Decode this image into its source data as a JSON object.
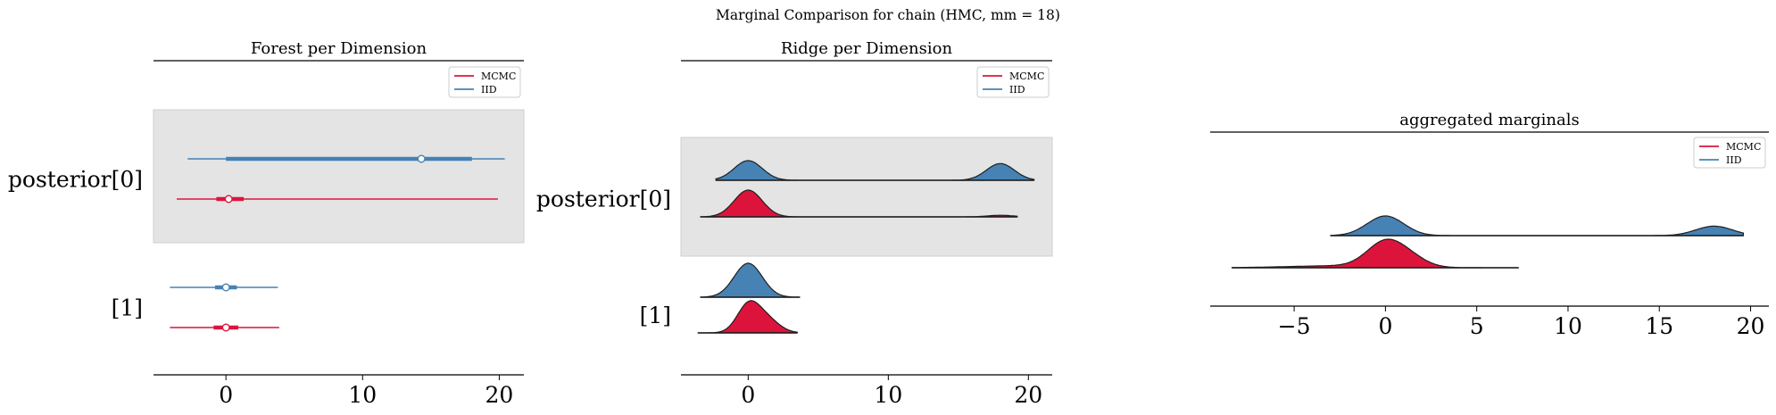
{
  "suptitle": "Marginal Comparison for chain (HMC, mm = 18)",
  "colors": {
    "mcmc": "#dc143c",
    "iid": "#4682b4",
    "band": "#e4e4e4",
    "band_edge": "#cfcfcf",
    "outline": "#1f1f1f"
  },
  "legend": [
    "MCMC",
    "IID"
  ],
  "chart_data": [
    {
      "type": "forest",
      "title": "Forest per Dimension",
      "xlim": [
        -5.3,
        21.8
      ],
      "xticks": [
        0,
        10,
        20
      ],
      "grid": false,
      "legend_placement": "top-right",
      "rows": [
        {
          "label": "posterior[0]",
          "shaded": true,
          "series": [
            {
              "name": "IID",
              "whisker": [
                -2.8,
                20.4
              ],
              "box": [
                0,
                18
              ],
              "median": 14.3
            },
            {
              "name": "MCMC",
              "whisker": [
                -3.6,
                19.9
              ],
              "box": [
                -0.7,
                1.3
              ],
              "median": 0.2
            }
          ]
        },
        {
          "label": "[1]",
          "shaded": false,
          "series": [
            {
              "name": "IID",
              "whisker": [
                -4.1,
                3.8
              ],
              "box": [
                -0.8,
                0.8
              ],
              "median": 0.0
            },
            {
              "name": "MCMC",
              "whisker": [
                -4.1,
                3.9
              ],
              "box": [
                -0.9,
                0.9
              ],
              "median": 0.0
            }
          ]
        }
      ]
    },
    {
      "type": "ridge",
      "title": "Ridge per Dimension",
      "xlim": [
        -4.8,
        21.7
      ],
      "xticks": [
        0,
        10,
        20
      ],
      "grid": false,
      "legend_placement": "top-right",
      "rows": [
        {
          "label": "posterior[0]",
          "shaded": true,
          "series": [
            {
              "name": "IID",
              "range": [
                -2.3,
                20.4
              ],
              "components": [
                {
                  "mu": 0.0,
                  "sd": 1.0,
                  "w": 1.0
                },
                {
                  "mu": 18.0,
                  "sd": 1.0,
                  "w": 0.85
                }
              ]
            },
            {
              "name": "MCMC",
              "range": [
                -3.4,
                19.2
              ],
              "components": [
                {
                  "mu": 0.0,
                  "sd": 1.0,
                  "w": 1.0
                },
                {
                  "mu": 18.0,
                  "sd": 0.9,
                  "w": 0.06
                }
              ]
            }
          ]
        },
        {
          "label": "[1]",
          "shaded": false,
          "series": [
            {
              "name": "IID",
              "range": [
                -3.4,
                3.7
              ],
              "components": [
                {
                  "mu": 0.0,
                  "sd": 1.0,
                  "w": 1.0
                }
              ]
            },
            {
              "name": "MCMC",
              "range": [
                -3.6,
                3.5
              ],
              "components": [
                {
                  "mu": 0.0,
                  "sd": 0.8,
                  "w": 0.8
                },
                {
                  "mu": 1.3,
                  "sd": 0.9,
                  "w": 0.4
                }
              ]
            }
          ]
        }
      ]
    },
    {
      "type": "area",
      "title": "aggregated marginals",
      "xlim": [
        -9.6,
        21.0
      ],
      "xticks": [
        -5,
        0,
        5,
        10,
        15,
        20
      ],
      "grid": false,
      "legend_placement": "top-right",
      "series": [
        {
          "name": "IID",
          "range": [
            -3.0,
            19.6
          ],
          "components": [
            {
              "mu": 0.0,
              "sd": 1.0,
              "w": 1.0
            },
            {
              "mu": 18.0,
              "sd": 1.0,
              "w": 0.48
            }
          ]
        },
        {
          "name": "MCMC",
          "range": [
            -8.4,
            7.3
          ],
          "components": [
            {
              "mu": 0.0,
              "sd": 1.0,
              "w": 1.0
            },
            {
              "mu": 1.4,
              "sd": 0.9,
              "w": 0.3
            },
            {
              "mu": -2.5,
              "sd": 2.8,
              "w": 0.08
            }
          ]
        }
      ]
    }
  ]
}
